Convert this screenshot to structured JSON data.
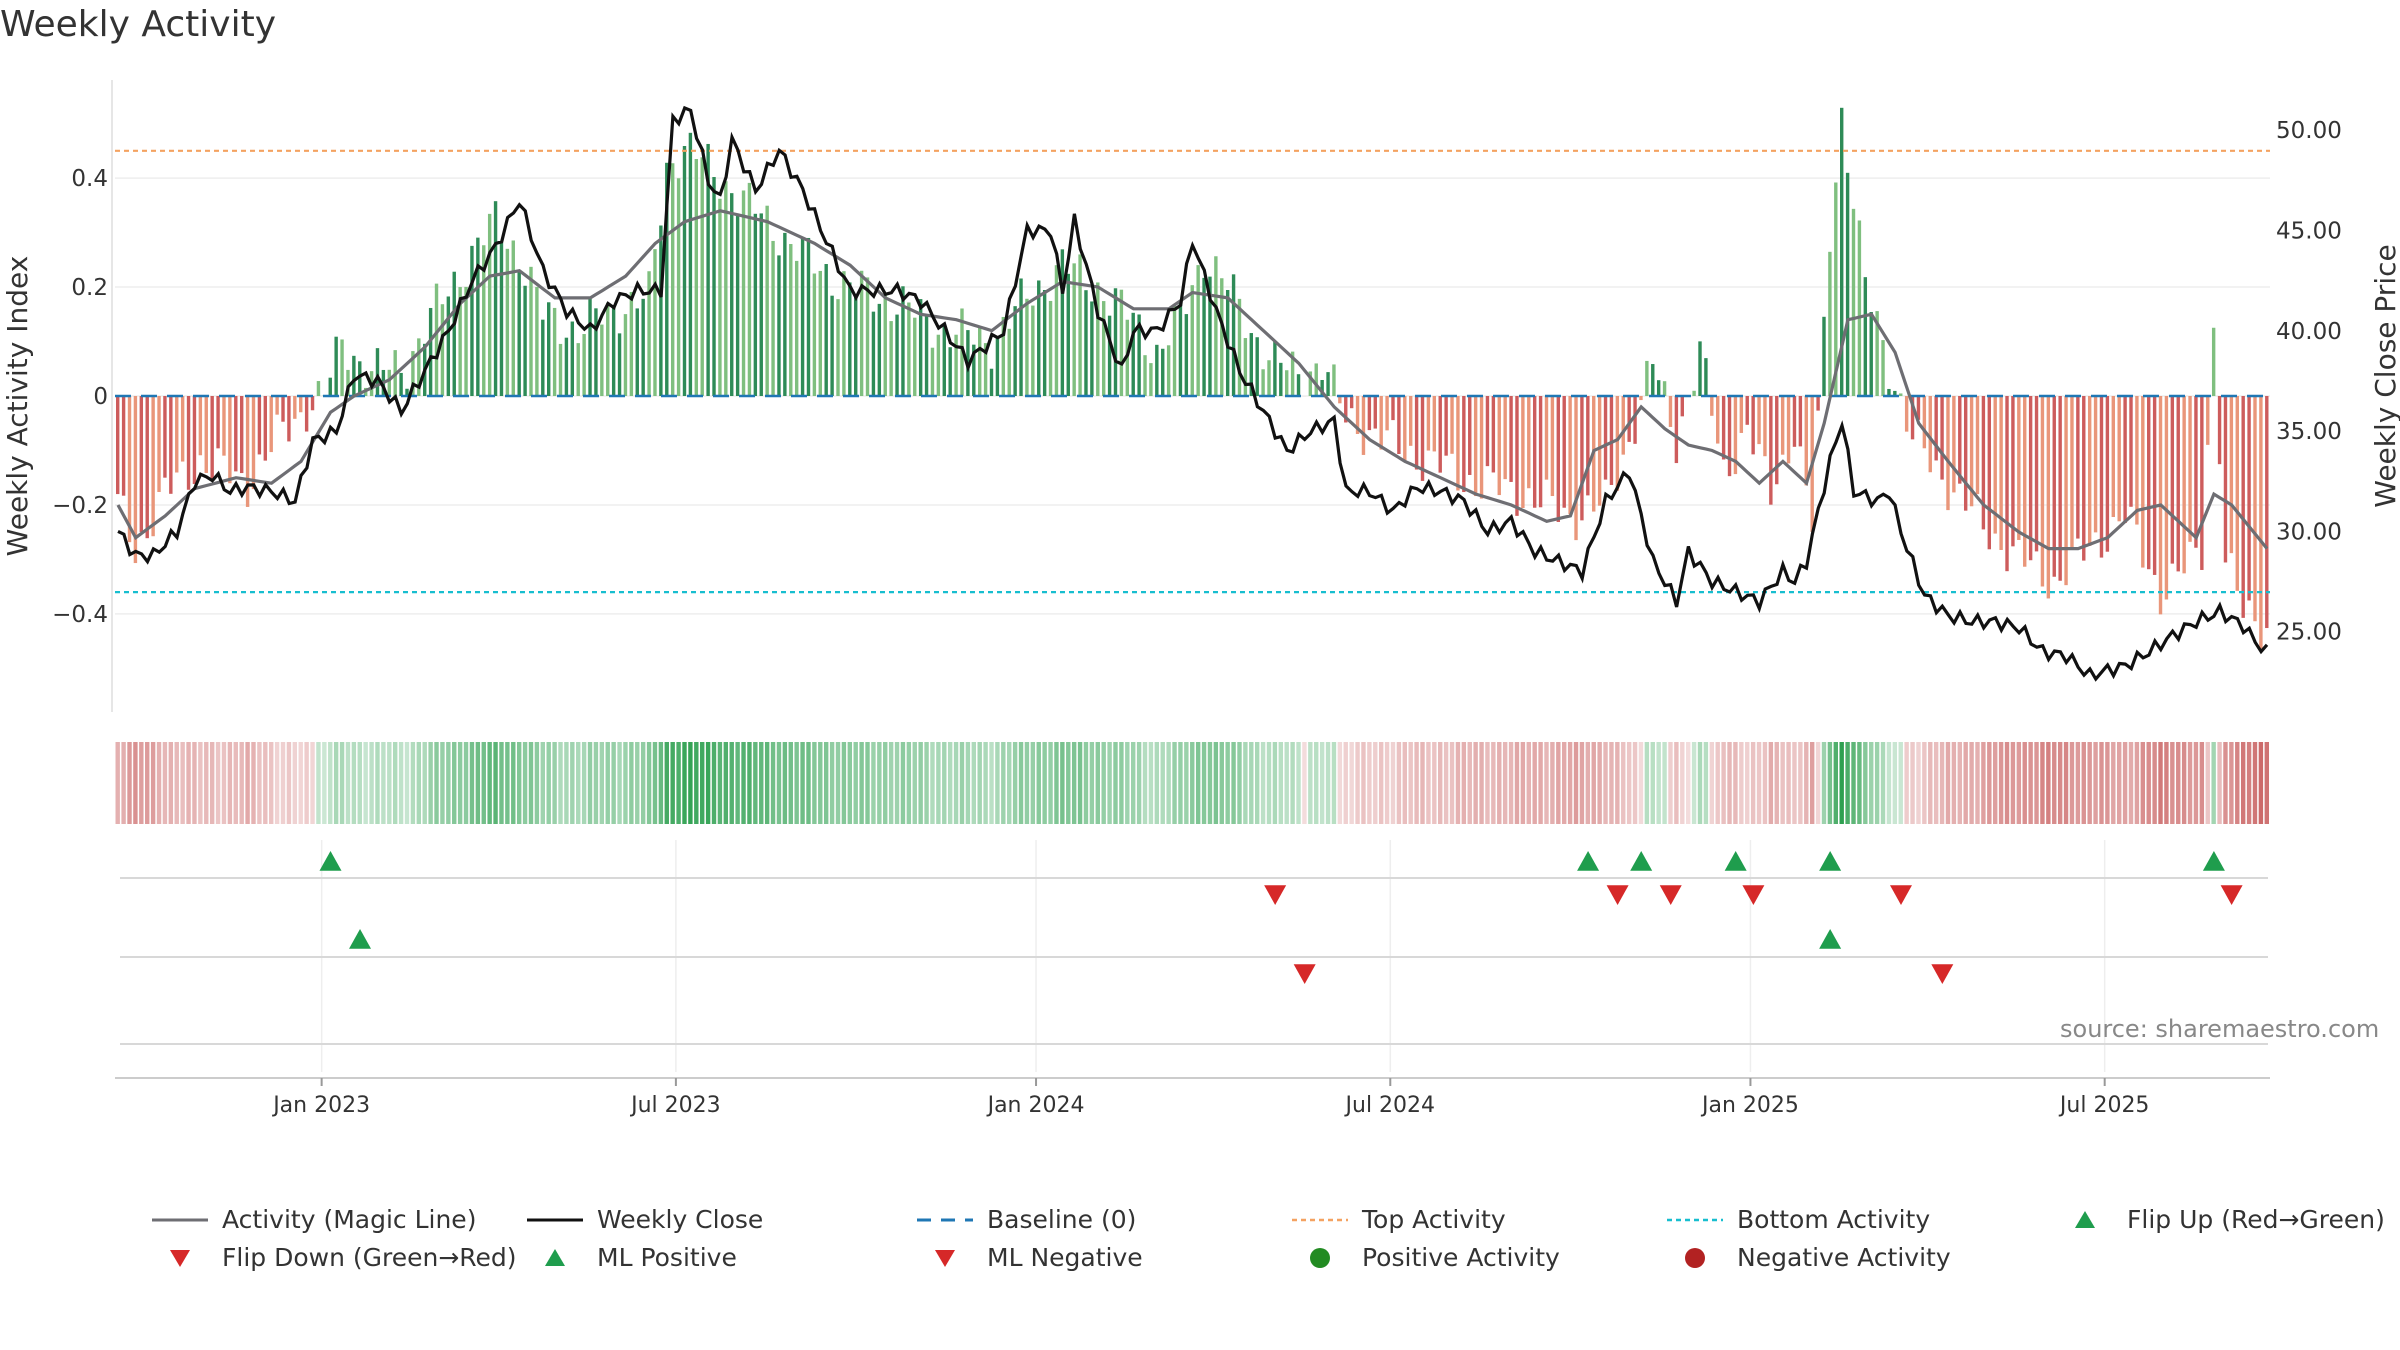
{
  "title": "Weekly Activity",
  "source": "source: sharemaestro.com",
  "colors": {
    "pos_dark": "#2e8b57",
    "pos_light": "#7fbf7f",
    "neg_dark": "#cd5c5c",
    "neg_light": "#e9967a",
    "magic_line": "#6e6e73",
    "close_line": "#111111",
    "baseline": "#1f77b4",
    "top": "#f4a261",
    "bottom": "#17becf",
    "marker_up": "#1f9d4d",
    "marker_down": "#d62828",
    "pos_dot": "#228b22",
    "neg_dot": "#b22222"
  },
  "chart_data": {
    "type": "bar+line",
    "title": "Weekly Activity",
    "ylabel": "Weekly Activity Index",
    "y2label": "Weekly Close Price",
    "ylim": [
      -0.58,
      0.58
    ],
    "y2lim": [
      21.0,
      52.5
    ],
    "yticks": [
      "0.4",
      "0.2",
      "0",
      "−0.2",
      "−0.4"
    ],
    "yticks_values": [
      0.4,
      0.2,
      0,
      -0.2,
      -0.4
    ],
    "y2ticks": [
      "50.00",
      "45.00",
      "40.00",
      "35.00",
      "30.00",
      "25.00"
    ],
    "y2ticks_values": [
      50,
      45,
      40,
      35,
      30,
      25
    ],
    "xticks": [
      "Jan 2023",
      "Jul 2023",
      "Jan 2024",
      "Jul 2024",
      "Jan 2025",
      "Jul 2025"
    ],
    "xticks_week_index": [
      35,
      95,
      156,
      216,
      277,
      337
    ],
    "top_activity": 0.45,
    "bottom_activity": -0.36,
    "baseline": 0,
    "weeks": 365,
    "activity_keyframes": [
      [
        0,
        -0.2
      ],
      [
        3,
        -0.28
      ],
      [
        8,
        -0.18
      ],
      [
        14,
        -0.12
      ],
      [
        22,
        -0.16
      ],
      [
        27,
        -0.08
      ],
      [
        32,
        -0.02
      ],
      [
        35,
        0.0
      ],
      [
        38,
        0.1
      ],
      [
        43,
        0.04
      ],
      [
        49,
        0.06
      ],
      [
        54,
        0.16
      ],
      [
        60,
        0.26
      ],
      [
        64,
        0.32
      ],
      [
        68,
        0.26
      ],
      [
        72,
        0.15
      ],
      [
        78,
        0.12
      ],
      [
        84,
        0.16
      ],
      [
        90,
        0.18
      ],
      [
        93,
        0.42
      ],
      [
        96,
        0.46
      ],
      [
        100,
        0.42
      ],
      [
        106,
        0.36
      ],
      [
        112,
        0.3
      ],
      [
        118,
        0.24
      ],
      [
        124,
        0.2
      ],
      [
        132,
        0.17
      ],
      [
        140,
        0.12
      ],
      [
        148,
        0.1
      ],
      [
        154,
        0.18
      ],
      [
        160,
        0.24
      ],
      [
        166,
        0.2
      ],
      [
        172,
        0.14
      ],
      [
        176,
        0.08
      ],
      [
        180,
        0.14
      ],
      [
        184,
        0.26
      ],
      [
        188,
        0.2
      ],
      [
        192,
        0.12
      ],
      [
        196,
        0.06
      ],
      [
        200,
        0.04
      ],
      [
        204,
        0.06
      ],
      [
        208,
        -0.04
      ],
      [
        214,
        -0.08
      ],
      [
        222,
        -0.12
      ],
      [
        230,
        -0.16
      ],
      [
        238,
        -0.18
      ],
      [
        246,
        -0.22
      ],
      [
        252,
        -0.2
      ],
      [
        256,
        -0.08
      ],
      [
        260,
        0.06
      ],
      [
        264,
        -0.08
      ],
      [
        268,
        0.08
      ],
      [
        272,
        -0.14
      ],
      [
        276,
        -0.06
      ],
      [
        280,
        -0.18
      ],
      [
        284,
        -0.06
      ],
      [
        287,
        -0.24
      ],
      [
        290,
        0.3
      ],
      [
        292,
        0.52
      ],
      [
        296,
        0.2
      ],
      [
        300,
        0.06
      ],
      [
        304,
        -0.08
      ],
      [
        310,
        -0.16
      ],
      [
        316,
        -0.24
      ],
      [
        322,
        -0.3
      ],
      [
        328,
        -0.34
      ],
      [
        334,
        -0.28
      ],
      [
        340,
        -0.22
      ],
      [
        346,
        -0.36
      ],
      [
        350,
        -0.32
      ],
      [
        353,
        -0.28
      ],
      [
        355,
        0.12
      ],
      [
        357,
        -0.3
      ],
      [
        360,
        -0.4
      ],
      [
        364,
        -0.42
      ]
    ],
    "magic_keyframes": [
      [
        0,
        -0.2
      ],
      [
        3,
        -0.26
      ],
      [
        8,
        -0.22
      ],
      [
        13,
        -0.17
      ],
      [
        20,
        -0.15
      ],
      [
        26,
        -0.16
      ],
      [
        31,
        -0.12
      ],
      [
        36,
        -0.03
      ],
      [
        40,
        0.0
      ],
      [
        46,
        0.03
      ],
      [
        52,
        0.09
      ],
      [
        58,
        0.17
      ],
      [
        63,
        0.22
      ],
      [
        68,
        0.23
      ],
      [
        74,
        0.18
      ],
      [
        80,
        0.18
      ],
      [
        86,
        0.22
      ],
      [
        91,
        0.28
      ],
      [
        96,
        0.32
      ],
      [
        102,
        0.34
      ],
      [
        110,
        0.32
      ],
      [
        118,
        0.28
      ],
      [
        124,
        0.24
      ],
      [
        130,
        0.18
      ],
      [
        136,
        0.15
      ],
      [
        142,
        0.14
      ],
      [
        148,
        0.12
      ],
      [
        154,
        0.17
      ],
      [
        160,
        0.21
      ],
      [
        166,
        0.2
      ],
      [
        172,
        0.16
      ],
      [
        178,
        0.16
      ],
      [
        182,
        0.19
      ],
      [
        188,
        0.18
      ],
      [
        194,
        0.12
      ],
      [
        200,
        0.06
      ],
      [
        206,
        -0.02
      ],
      [
        212,
        -0.08
      ],
      [
        218,
        -0.12
      ],
      [
        224,
        -0.15
      ],
      [
        230,
        -0.18
      ],
      [
        236,
        -0.2
      ],
      [
        242,
        -0.23
      ],
      [
        246,
        -0.22
      ],
      [
        250,
        -0.1
      ],
      [
        254,
        -0.08
      ],
      [
        258,
        -0.02
      ],
      [
        262,
        -0.06
      ],
      [
        266,
        -0.09
      ],
      [
        270,
        -0.1
      ],
      [
        274,
        -0.12
      ],
      [
        278,
        -0.16
      ],
      [
        282,
        -0.12
      ],
      [
        286,
        -0.16
      ],
      [
        289,
        -0.05
      ],
      [
        293,
        0.14
      ],
      [
        297,
        0.15
      ],
      [
        301,
        0.08
      ],
      [
        305,
        -0.05
      ],
      [
        310,
        -0.12
      ],
      [
        316,
        -0.2
      ],
      [
        322,
        -0.25
      ],
      [
        327,
        -0.28
      ],
      [
        332,
        -0.28
      ],
      [
        337,
        -0.26
      ],
      [
        342,
        -0.21
      ],
      [
        346,
        -0.2
      ],
      [
        352,
        -0.26
      ],
      [
        355,
        -0.18
      ],
      [
        358,
        -0.2
      ],
      [
        364,
        -0.28
      ]
    ],
    "close_keyframes": [
      [
        0,
        30.0
      ],
      [
        3,
        28.8
      ],
      [
        6,
        28.8
      ],
      [
        10,
        30.0
      ],
      [
        13,
        32.5
      ],
      [
        16,
        32.8
      ],
      [
        19,
        32.0
      ],
      [
        22,
        32.2
      ],
      [
        26,
        32.0
      ],
      [
        30,
        31.5
      ],
      [
        33,
        34.5
      ],
      [
        37,
        35.0
      ],
      [
        40,
        37.8
      ],
      [
        44,
        37.5
      ],
      [
        48,
        36.0
      ],
      [
        52,
        38.0
      ],
      [
        56,
        40.0
      ],
      [
        60,
        42.5
      ],
      [
        64,
        44.2
      ],
      [
        68,
        46.5
      ],
      [
        72,
        43.0
      ],
      [
        76,
        41.0
      ],
      [
        80,
        40.0
      ],
      [
        84,
        41.5
      ],
      [
        88,
        42.0
      ],
      [
        92,
        42.0
      ],
      [
        94,
        50.5
      ],
      [
        97,
        51.0
      ],
      [
        100,
        47.5
      ],
      [
        102,
        46.5
      ],
      [
        104,
        49.5
      ],
      [
        108,
        47.0
      ],
      [
        112,
        49.0
      ],
      [
        116,
        47.0
      ],
      [
        120,
        44.5
      ],
      [
        124,
        42.0
      ],
      [
        128,
        42.0
      ],
      [
        132,
        42.0
      ],
      [
        136,
        41.5
      ],
      [
        140,
        40.0
      ],
      [
        144,
        38.5
      ],
      [
        150,
        40.0
      ],
      [
        154,
        45.0
      ],
      [
        158,
        45.0
      ],
      [
        160,
        42.0
      ],
      [
        162,
        45.5
      ],
      [
        166,
        41.0
      ],
      [
        170,
        38.0
      ],
      [
        172,
        40.0
      ],
      [
        176,
        40.0
      ],
      [
        180,
        41.5
      ],
      [
        182,
        44.5
      ],
      [
        186,
        41.0
      ],
      [
        190,
        38.0
      ],
      [
        194,
        36.0
      ],
      [
        198,
        34.0
      ],
      [
        202,
        35.0
      ],
      [
        206,
        35.5
      ],
      [
        208,
        32.0
      ],
      [
        212,
        32.0
      ],
      [
        216,
        31.0
      ],
      [
        220,
        32.2
      ],
      [
        224,
        32.0
      ],
      [
        228,
        31.5
      ],
      [
        232,
        30.0
      ],
      [
        236,
        30.5
      ],
      [
        240,
        29.0
      ],
      [
        244,
        28.5
      ],
      [
        248,
        28.0
      ],
      [
        252,
        31.5
      ],
      [
        256,
        33.0
      ],
      [
        260,
        28.5
      ],
      [
        264,
        26.5
      ],
      [
        266,
        29.0
      ],
      [
        270,
        27.5
      ],
      [
        274,
        27.0
      ],
      [
        278,
        26.5
      ],
      [
        282,
        28.0
      ],
      [
        284,
        27.5
      ],
      [
        286,
        28.5
      ],
      [
        288,
        31.0
      ],
      [
        290,
        33.5
      ],
      [
        292,
        35.5
      ],
      [
        294,
        32.0
      ],
      [
        298,
        31.5
      ],
      [
        300,
        32.0
      ],
      [
        302,
        30.0
      ],
      [
        306,
        26.8
      ],
      [
        310,
        25.8
      ],
      [
        314,
        25.5
      ],
      [
        318,
        25.5
      ],
      [
        322,
        25.2
      ],
      [
        326,
        24.0
      ],
      [
        330,
        23.8
      ],
      [
        334,
        22.8
      ],
      [
        336,
        23.0
      ],
      [
        340,
        23.3
      ],
      [
        344,
        24.0
      ],
      [
        348,
        24.8
      ],
      [
        352,
        25.5
      ],
      [
        356,
        26.0
      ],
      [
        360,
        25.3
      ],
      [
        362,
        24.5
      ],
      [
        364,
        24.0
      ]
    ],
    "marker_rows": [
      {
        "name": "flip-up",
        "shape": "up",
        "weeks": [
          36,
          249,
          258,
          274,
          290,
          355
        ]
      },
      {
        "name": "flip-down",
        "shape": "down",
        "weeks": [
          196,
          254,
          263,
          277,
          302,
          358
        ]
      },
      {
        "name": "ml-positive",
        "shape": "up",
        "weeks": [
          41,
          290
        ]
      },
      {
        "name": "ml-negative",
        "shape": "down",
        "weeks": [
          201,
          309
        ]
      }
    ]
  },
  "legend": [
    {
      "label": "Activity (Magic Line)",
      "key": "magic"
    },
    {
      "label": "Weekly Close",
      "key": "close"
    },
    {
      "label": "Baseline (0)",
      "key": "baseline"
    },
    {
      "label": "Top Activity",
      "key": "top"
    },
    {
      "label": "Bottom Activity",
      "key": "bottom"
    },
    {
      "label": "Flip Up (Red→Green)",
      "key": "flipup"
    },
    {
      "label": "Flip Down (Green→Red)",
      "key": "flipdown"
    },
    {
      "label": "ML Positive",
      "key": "mlpos"
    },
    {
      "label": "ML Negative",
      "key": "mlneg"
    },
    {
      "label": "Positive Activity",
      "key": "posdot"
    },
    {
      "label": "Negative Activity",
      "key": "negdot"
    }
  ]
}
